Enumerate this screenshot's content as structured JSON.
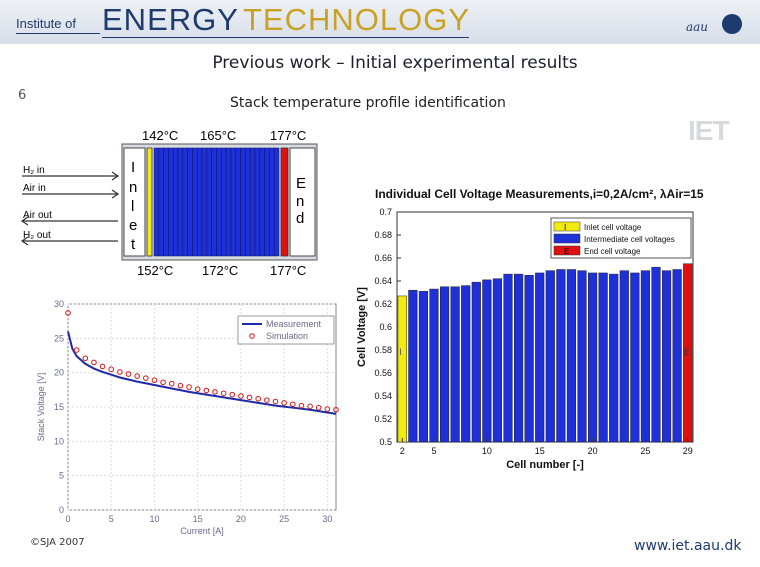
{
  "header": {
    "institute": "Institute of",
    "energy": "ENERGY",
    "technology": "TECHNOLOGY",
    "aau": "aau"
  },
  "slide": {
    "title": "Previous work – Initial experimental results",
    "number": "6",
    "subtitle": "Stack temperature profile identification",
    "copyright": "©SJA 2007",
    "url": "www.iet.aau.dk",
    "iet_logo": "IET"
  },
  "stack_diagram": {
    "top_temps": [
      "142°C",
      "165°C",
      "177°C"
    ],
    "bottom_temps": [
      "152°C",
      "172°C",
      "177°C"
    ],
    "ports": [
      "H₂ in",
      "Air in",
      "Air out",
      "H₂ out"
    ],
    "inlet_letters": [
      "I",
      "n",
      "l",
      "e",
      "t"
    ],
    "end_letters": [
      "E",
      "n",
      "d"
    ],
    "cell_colors": {
      "inlet": "#f2ea10",
      "intermediate": "#1e30d8",
      "end": "#e01010"
    }
  },
  "chart_data": [
    {
      "type": "line",
      "title": "",
      "xlabel": "Current [A]",
      "ylabel": "Stack Voltage [V]",
      "xlim": [
        0,
        31
      ],
      "ylim": [
        0,
        30
      ],
      "xticks": [
        0,
        5,
        10,
        15,
        20,
        25,
        30
      ],
      "yticks": [
        0,
        5,
        10,
        15,
        20,
        25,
        30
      ],
      "grid": true,
      "legend": "top-right",
      "series": [
        {
          "name": "Measurement",
          "style": "line",
          "color": "#1f2aa8",
          "x": [
            0,
            0.5,
            1,
            2,
            3,
            4,
            5,
            6,
            8,
            10,
            12,
            14,
            16,
            18,
            20,
            22,
            24,
            26,
            28,
            30,
            31
          ],
          "y": [
            26,
            23.5,
            22.4,
            21.3,
            20.6,
            20.1,
            19.7,
            19.3,
            18.7,
            18.2,
            17.7,
            17.2,
            16.8,
            16.4,
            16.0,
            15.6,
            15.2,
            14.9,
            14.6,
            14.2,
            14.0
          ]
        },
        {
          "name": "Simulation",
          "style": "markers",
          "color": "#d01818",
          "x": [
            0,
            1,
            2,
            3,
            4,
            5,
            6,
            7,
            8,
            9,
            10,
            11,
            12,
            13,
            14,
            15,
            16,
            17,
            18,
            19,
            20,
            21,
            22,
            23,
            24,
            25,
            26,
            27,
            28,
            29,
            30,
            31
          ],
          "y": [
            28.7,
            23.3,
            22.1,
            21.5,
            20.9,
            20.5,
            20.1,
            19.8,
            19.5,
            19.2,
            18.9,
            18.6,
            18.4,
            18.1,
            17.9,
            17.6,
            17.4,
            17.2,
            17.0,
            16.8,
            16.6,
            16.4,
            16.2,
            16.0,
            15.8,
            15.6,
            15.4,
            15.2,
            15.1,
            14.9,
            14.7,
            14.6
          ]
        }
      ]
    },
    {
      "type": "bar",
      "title": "Individual Cell Voltage Measurements,i=0,2A/cm², λAir=15",
      "xlabel": "Cell number [-]",
      "ylabel": "Cell Voltage [V]",
      "ylim": [
        0.5,
        0.7
      ],
      "xlim": [
        1.5,
        29.5
      ],
      "xticks": [
        2,
        5,
        10,
        15,
        20,
        25,
        29
      ],
      "yticks": [
        0.5,
        0.52,
        0.54,
        0.56,
        0.58,
        0.6,
        0.62,
        0.64,
        0.66,
        0.68,
        0.7
      ],
      "legend": "top-right",
      "bar_letters": {
        "first": "I",
        "last": "E"
      },
      "legend_entries": [
        {
          "name": "Inlet cell voltage",
          "color": "#f2ea10",
          "letter": "I"
        },
        {
          "name": "Intermediate cell voltages",
          "color": "#1e30d8",
          "letter": ""
        },
        {
          "name": "End cell voltage",
          "color": "#e01010",
          "letter": "E"
        }
      ],
      "categories": [
        2,
        3,
        4,
        5,
        6,
        7,
        8,
        9,
        10,
        11,
        12,
        13,
        14,
        15,
        16,
        17,
        18,
        19,
        20,
        21,
        22,
        23,
        24,
        25,
        26,
        27,
        28,
        29
      ],
      "values": [
        0.627,
        0.632,
        0.631,
        0.633,
        0.635,
        0.635,
        0.636,
        0.639,
        0.641,
        0.642,
        0.646,
        0.646,
        0.645,
        0.647,
        0.649,
        0.65,
        0.65,
        0.649,
        0.647,
        0.647,
        0.646,
        0.649,
        0.647,
        0.649,
        0.652,
        0.649,
        0.65,
        0.655
      ],
      "bar_types": [
        "inlet",
        "mid",
        "mid",
        "mid",
        "mid",
        "mid",
        "mid",
        "mid",
        "mid",
        "mid",
        "mid",
        "mid",
        "mid",
        "mid",
        "mid",
        "mid",
        "mid",
        "mid",
        "mid",
        "mid",
        "mid",
        "mid",
        "mid",
        "mid",
        "mid",
        "mid",
        "mid",
        "end"
      ]
    }
  ]
}
